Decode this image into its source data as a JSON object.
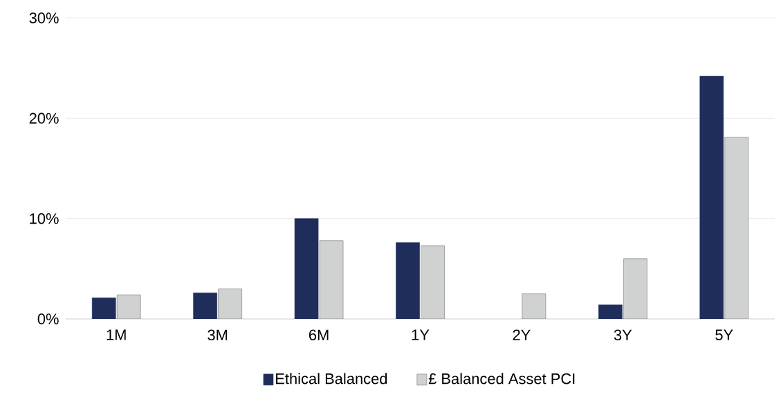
{
  "chart_data": {
    "type": "bar",
    "categories": [
      "1M",
      "3M",
      "6M",
      "1Y",
      "2Y",
      "3Y",
      "5Y"
    ],
    "series": [
      {
        "name": "Ethical Balanced",
        "color": "#1f2d5a",
        "values": [
          2.1,
          2.6,
          10.0,
          7.6,
          null,
          1.4,
          24.2
        ]
      },
      {
        "name": "£ Balanced Asset PCI",
        "color": "#d0d1d1",
        "values": [
          2.4,
          3.0,
          7.8,
          7.3,
          2.5,
          6.0,
          18.1
        ]
      }
    ],
    "ylim": [
      0,
      30
    ],
    "yticks": [
      {
        "value": 0,
        "label": "0%"
      },
      {
        "value": 10,
        "label": "10%"
      },
      {
        "value": 20,
        "label": "20%"
      },
      {
        "value": 30,
        "label": "30%"
      }
    ],
    "grid": "y",
    "legend": "bottom"
  }
}
